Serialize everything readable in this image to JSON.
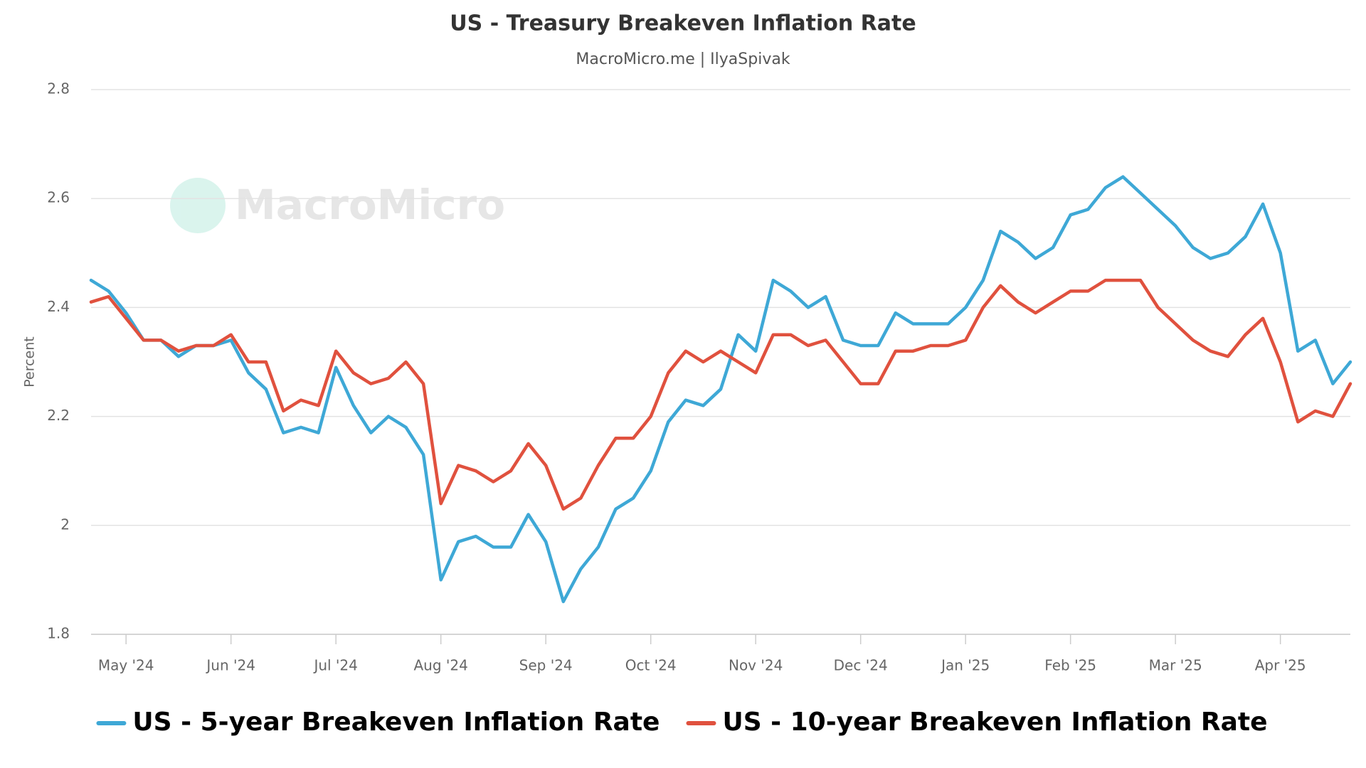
{
  "chart_data": {
    "type": "line",
    "title": "US - Treasury Breakeven Inflation Rate",
    "subtitle": "MacroMicro.me | IlyaSpivak",
    "watermark": "MacroMicro",
    "y_label": "Percent",
    "categories": [
      null,
      null,
      "May '24",
      null,
      null,
      null,
      null,
      null,
      "Jun '24",
      null,
      null,
      null,
      null,
      null,
      "Jul '24",
      null,
      null,
      null,
      null,
      null,
      "Aug '24",
      null,
      null,
      null,
      null,
      null,
      "Sep '24",
      null,
      null,
      null,
      null,
      null,
      "Oct '24",
      null,
      null,
      null,
      null,
      null,
      "Nov '24",
      null,
      null,
      null,
      null,
      null,
      "Dec '24",
      null,
      null,
      null,
      null,
      null,
      "Jan '25",
      null,
      null,
      null,
      null,
      null,
      "Feb '25",
      null,
      null,
      null,
      null,
      null,
      "Mar '25",
      null,
      null,
      null,
      null,
      null,
      "Apr '25",
      null,
      null,
      null,
      null
    ],
    "series": [
      {
        "name": "US - 5-year Breakeven Inflation Rate",
        "color": "#3ea8d6",
        "values": [
          2.45,
          2.43,
          2.39,
          2.34,
          2.34,
          2.31,
          2.33,
          2.33,
          2.34,
          2.28,
          2.25,
          2.17,
          2.18,
          2.17,
          2.29,
          2.22,
          2.17,
          2.2,
          2.18,
          2.13,
          1.9,
          1.97,
          1.98,
          1.96,
          1.96,
          2.02,
          1.97,
          1.86,
          1.92,
          1.96,
          2.03,
          2.05,
          2.1,
          2.19,
          2.23,
          2.22,
          2.25,
          2.35,
          2.32,
          2.45,
          2.43,
          2.4,
          2.42,
          2.34,
          2.33,
          2.33,
          2.39,
          2.37,
          2.37,
          2.37,
          2.4,
          2.45,
          2.54,
          2.52,
          2.49,
          2.51,
          2.57,
          2.58,
          2.62,
          2.64,
          2.61,
          2.58,
          2.55,
          2.51,
          2.49,
          2.5,
          2.53,
          2.59,
          2.5,
          2.32,
          2.34,
          2.26,
          2.3
        ]
      },
      {
        "name": "US - 10-year Breakeven Inflation Rate",
        "color": "#e0513e",
        "values": [
          2.41,
          2.42,
          2.38,
          2.34,
          2.34,
          2.32,
          2.33,
          2.33,
          2.35,
          2.3,
          2.3,
          2.21,
          2.23,
          2.22,
          2.32,
          2.28,
          2.26,
          2.27,
          2.3,
          2.26,
          2.04,
          2.11,
          2.1,
          2.08,
          2.1,
          2.15,
          2.11,
          2.03,
          2.05,
          2.11,
          2.16,
          2.16,
          2.2,
          2.28,
          2.32,
          2.3,
          2.32,
          2.3,
          2.28,
          2.35,
          2.35,
          2.33,
          2.34,
          2.3,
          2.26,
          2.26,
          2.32,
          2.32,
          2.33,
          2.33,
          2.34,
          2.4,
          2.44,
          2.41,
          2.39,
          2.41,
          2.43,
          2.43,
          2.45,
          2.45,
          2.45,
          2.4,
          2.37,
          2.34,
          2.32,
          2.31,
          2.35,
          2.38,
          2.3,
          2.19,
          2.21,
          2.2,
          2.26
        ]
      }
    ],
    "ylim": [
      1.8,
      2.8
    ],
    "yticks": [
      1.8,
      2,
      2.2,
      2.4,
      2.6,
      2.8
    ],
    "grid": true
  }
}
